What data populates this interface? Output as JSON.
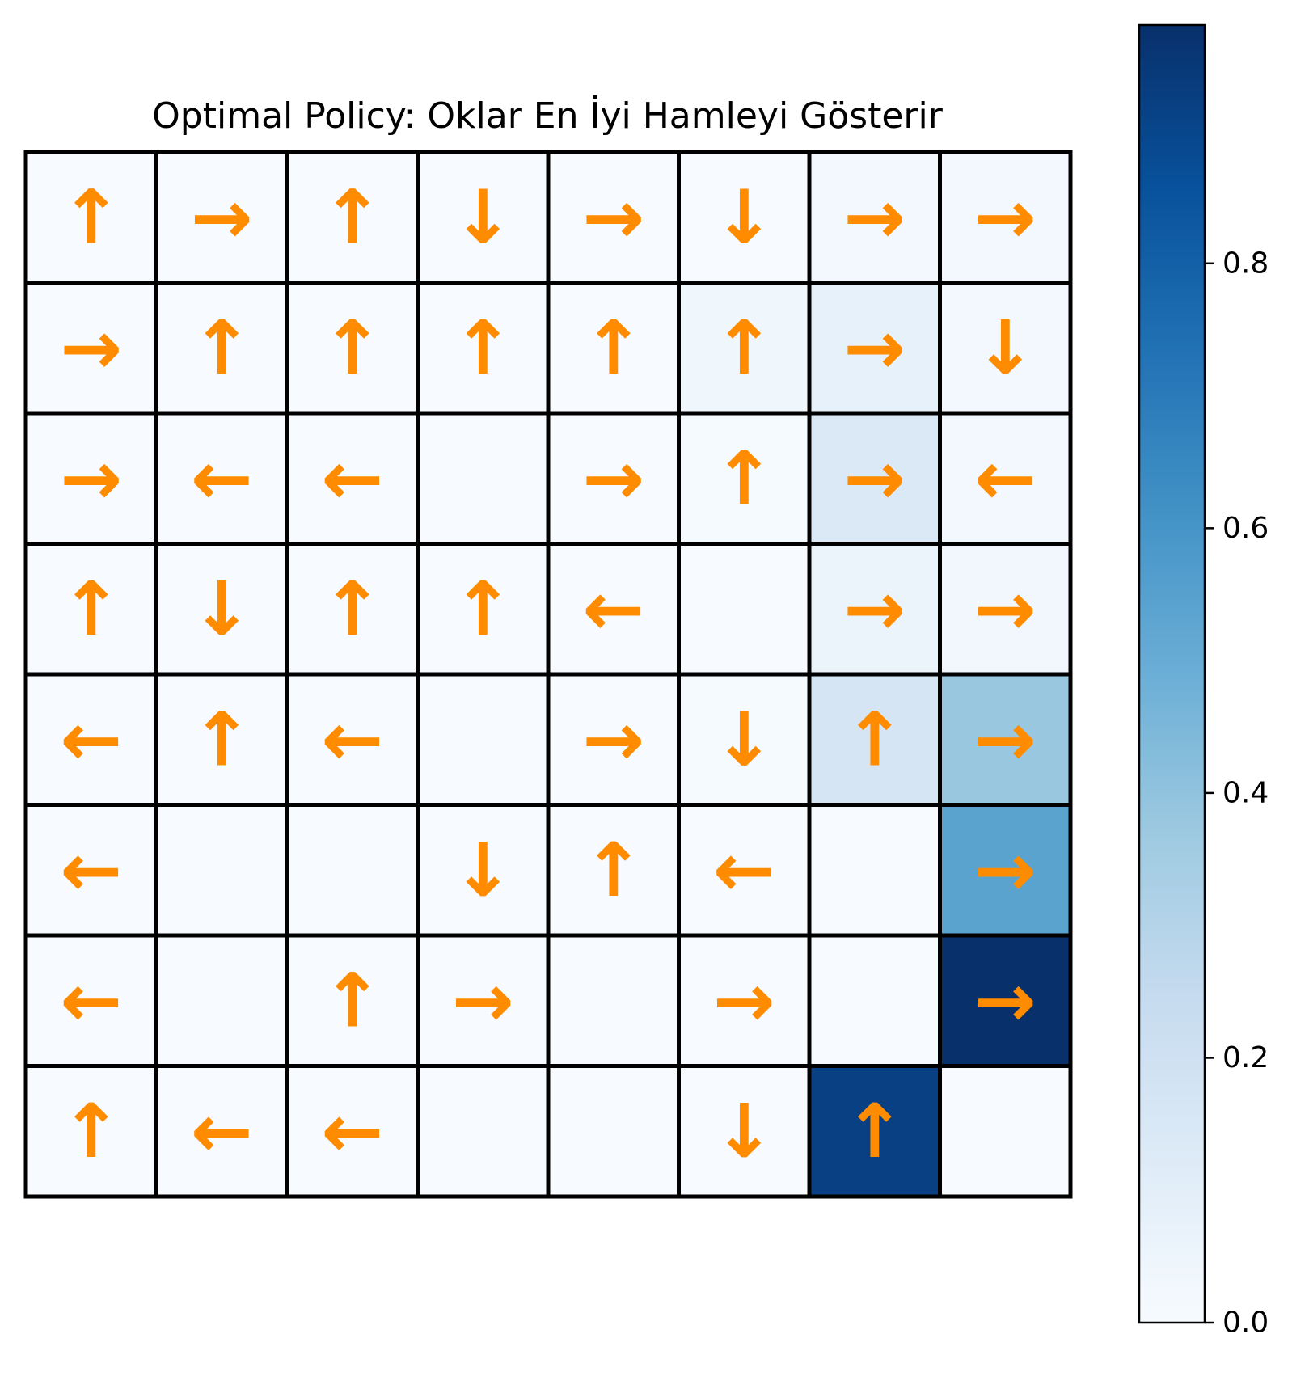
{
  "chart_data": {
    "type": "heatmap",
    "title": "Optimal Policy: Oklar En İyi Hamleyi Gösterir",
    "rows": 8,
    "cols": 8,
    "values": [
      [
        0.0,
        0.0,
        0.0,
        0.0,
        0.0,
        0.0,
        0.02,
        0.02
      ],
      [
        0.0,
        0.0,
        0.0,
        0.0,
        0.0,
        0.04,
        0.08,
        0.02
      ],
      [
        0.0,
        0.0,
        0.0,
        0.0,
        0.0,
        0.01,
        0.14,
        0.02
      ],
      [
        0.0,
        0.0,
        0.0,
        0.0,
        0.0,
        0.0,
        0.06,
        0.03
      ],
      [
        0.0,
        0.0,
        0.0,
        0.0,
        0.0,
        0.01,
        0.17,
        0.38
      ],
      [
        0.0,
        0.0,
        0.0,
        0.0,
        0.0,
        0.0,
        0.0,
        0.54
      ],
      [
        0.0,
        0.0,
        0.0,
        0.0,
        0.0,
        0.0,
        0.0,
        0.98
      ],
      [
        0.0,
        0.0,
        0.0,
        0.0,
        0.0,
        0.0,
        0.92,
        0.0
      ]
    ],
    "arrows": [
      [
        "↑",
        "→",
        "↑",
        "↓",
        "→",
        "↓",
        "→",
        "→"
      ],
      [
        "→",
        "↑",
        "↑",
        "↑",
        "↑",
        "↑",
        "→",
        "↓"
      ],
      [
        "→",
        "←",
        "←",
        "",
        "→",
        "↑",
        "→",
        "←"
      ],
      [
        "↑",
        "↓",
        "↑",
        "↑",
        "←",
        "",
        "→",
        "→"
      ],
      [
        "←",
        "↑",
        "←",
        "",
        "→",
        "↓",
        "↑",
        "→"
      ],
      [
        "←",
        "",
        "",
        "↓",
        "↑",
        "←",
        "",
        "→"
      ],
      [
        "←",
        "",
        "↑",
        "→",
        "",
        "→",
        "",
        "→"
      ],
      [
        "↑",
        "←",
        "←",
        "",
        "",
        "↓",
        "↑",
        ""
      ]
    ],
    "arrow_color": "#ff8c00",
    "colormap": "Blues",
    "colorbar": {
      "range": [
        0.0,
        0.98
      ],
      "ticks": [
        0.0,
        0.2,
        0.4,
        0.6,
        0.8
      ],
      "tick_labels": [
        "0.0",
        "0.2",
        "0.4",
        "0.6",
        "0.8"
      ]
    },
    "grid": true
  }
}
